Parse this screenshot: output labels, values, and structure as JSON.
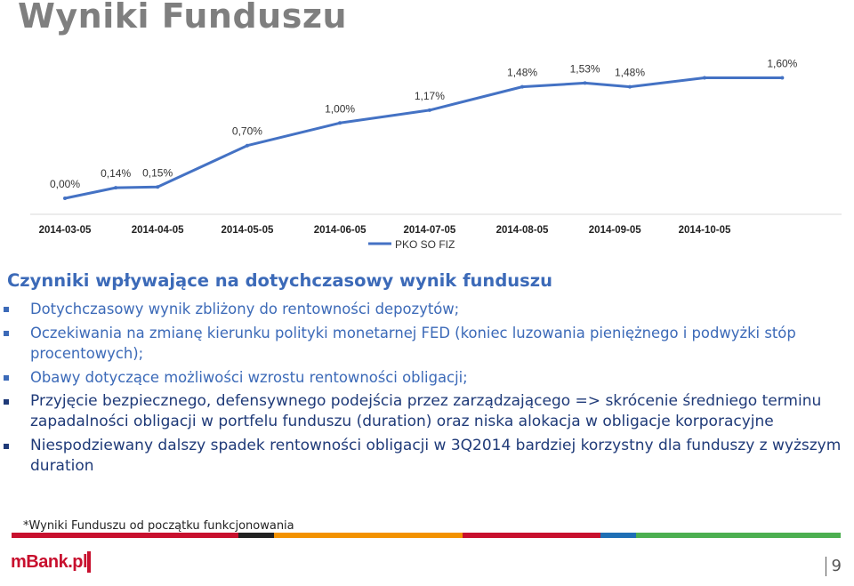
{
  "title": "Wyniki Funduszu",
  "chart_data": {
    "type": "line",
    "x": [
      "2014-03-05",
      "2014-03-22",
      "2014-04-05",
      "2014-05-05",
      "2014-06-05",
      "2014-07-05",
      "2014-08-05",
      "2014-08-26",
      "2014-09-10",
      "2014-10-05",
      "2014-10-31"
    ],
    "series": [
      {
        "name": "PKO SO FIZ",
        "values": [
          0.0,
          0.14,
          0.15,
          0.7,
          1.0,
          1.17,
          1.48,
          1.53,
          1.48,
          1.6,
          1.6
        ]
      }
    ],
    "data_labels": [
      "0,00%",
      "0,14%",
      "0,15%",
      "0,70%",
      "1,00%",
      "1,17%",
      "1,48%",
      "1,53%",
      "1,48%",
      "",
      "1,60%"
    ],
    "x_ticks": [
      "2014-03-05",
      "2014-04-05",
      "2014-05-05",
      "2014-06-05",
      "2014-07-05",
      "2014-08-05",
      "2014-09-05",
      "2014-10-05"
    ],
    "ylim": [
      0,
      1.7
    ],
    "legend_position": "bottom",
    "grid": false,
    "line_color": "#4472c4"
  },
  "section": {
    "heading": "Czynniki wpływające na dotychczasowy wynik funduszu",
    "bullets": [
      "Dotychczasowy wynik zbliżony do rentowności depozytów;",
      "Oczekiwania na zmianę kierunku polityki monetarnej FED (koniec luzowania pieniężnego i podwyżki stóp procentowych);",
      "Obawy dotyczące możliwości wzrostu rentowności obligacji;",
      "Przyjęcie bezpiecznego, defensywnego podejścia przez zarządzającego => skrócenie średniego terminu zapadalności obligacji w portfelu funduszu (duration) oraz niska alokacja w obligacje korporacyjne",
      "Niespodziewany dalszy spadek rentowności obligacji w 3Q2014 bardziej korzystny dla funduszy z wyższym duration"
    ]
  },
  "footnote": "*Wyniki Funduszu od początku funkcjonowania",
  "band_colors": [
    "#c8102e",
    "#222222",
    "#f39200",
    "#c8102e",
    "#1f6fb5",
    "#4caf50"
  ],
  "logo": "mBank.pl",
  "page_number": "9"
}
